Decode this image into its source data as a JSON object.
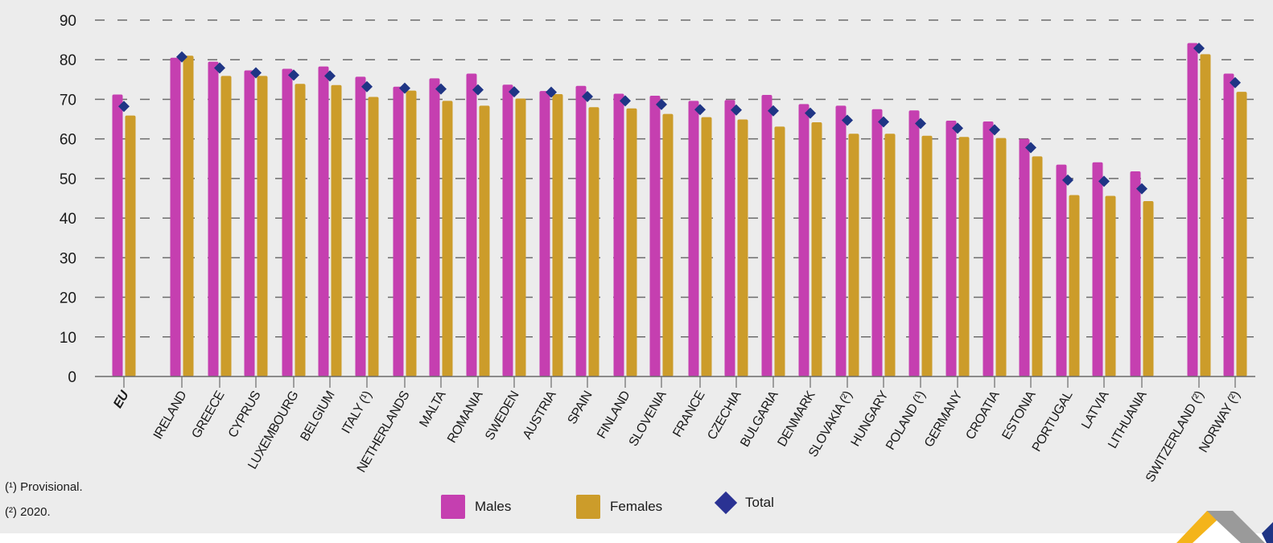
{
  "chart_data": {
    "type": "bar",
    "title": "",
    "xlabel": "",
    "ylabel": "",
    "ylim": [
      0,
      90
    ],
    "yticks": [
      0,
      10,
      20,
      30,
      40,
      50,
      60,
      70,
      80,
      90
    ],
    "grid": "horizontal dashed",
    "legend_position": "bottom-center",
    "categories": [
      "EU",
      "IRELAND",
      "GREECE",
      "CYPRUS",
      "LUXEMBOURG",
      "BELGIUM",
      "ITALY (¹)",
      "NETHERLANDS",
      "MALTA",
      "ROMANIA",
      "SWEDEN",
      "AUSTRIA",
      "SPAIN",
      "FINLAND",
      "SLOVENIA",
      "FRANCE",
      "CZECHIA",
      "BULGARIA",
      "DENMARK",
      "SLOVAKIA (²)",
      "HUNGARY",
      "POLAND (¹)",
      "GERMANY",
      "CROATIA",
      "ESTONIA",
      "PORTUGAL",
      "LATVIA",
      "LITHUANIA",
      "SWITZERLAND (²)",
      "NORWAY (²)"
    ],
    "groups_after_gap": [
      1,
      28
    ],
    "series": [
      {
        "name": "Males",
        "type": "bar",
        "color": "#c53fb0",
        "values": [
          71.2,
          80.5,
          79.5,
          77.3,
          77.7,
          78.3,
          75.7,
          73.2,
          75.3,
          76.5,
          73.7,
          72.1,
          73.4,
          71.4,
          70.9,
          69.6,
          69.8,
          71.1,
          68.8,
          68.4,
          67.5,
          67.2,
          64.6,
          64.4,
          60.0,
          53.5,
          54.1,
          51.8,
          84.2,
          76.5
        ]
      },
      {
        "name": "Females",
        "type": "bar",
        "color": "#cc9c2a",
        "values": [
          65.9,
          81.0,
          75.9,
          75.9,
          73.9,
          73.6,
          70.6,
          72.2,
          69.6,
          68.4,
          70.2,
          71.3,
          68.0,
          67.7,
          66.3,
          65.5,
          64.9,
          63.1,
          64.2,
          61.3,
          61.3,
          60.8,
          60.5,
          60.2,
          55.6,
          45.8,
          45.6,
          44.3,
          81.4,
          71.9
        ]
      },
      {
        "name": "Total",
        "type": "marker",
        "marker": "diamond",
        "color": "#1f3585",
        "values": [
          68.2,
          80.7,
          77.9,
          76.7,
          76.1,
          75.9,
          73.2,
          72.8,
          72.6,
          72.4,
          71.9,
          71.8,
          70.7,
          69.6,
          68.7,
          67.4,
          67.3,
          67.1,
          66.5,
          64.7,
          64.3,
          63.9,
          62.7,
          62.3,
          57.8,
          49.6,
          49.3,
          47.4,
          82.9,
          74.2
        ]
      }
    ]
  },
  "footnotes": [
    "(¹) Provisional.",
    "(²) 2020."
  ],
  "legend": {
    "males": "Males",
    "females": "Females",
    "total": "Total"
  }
}
